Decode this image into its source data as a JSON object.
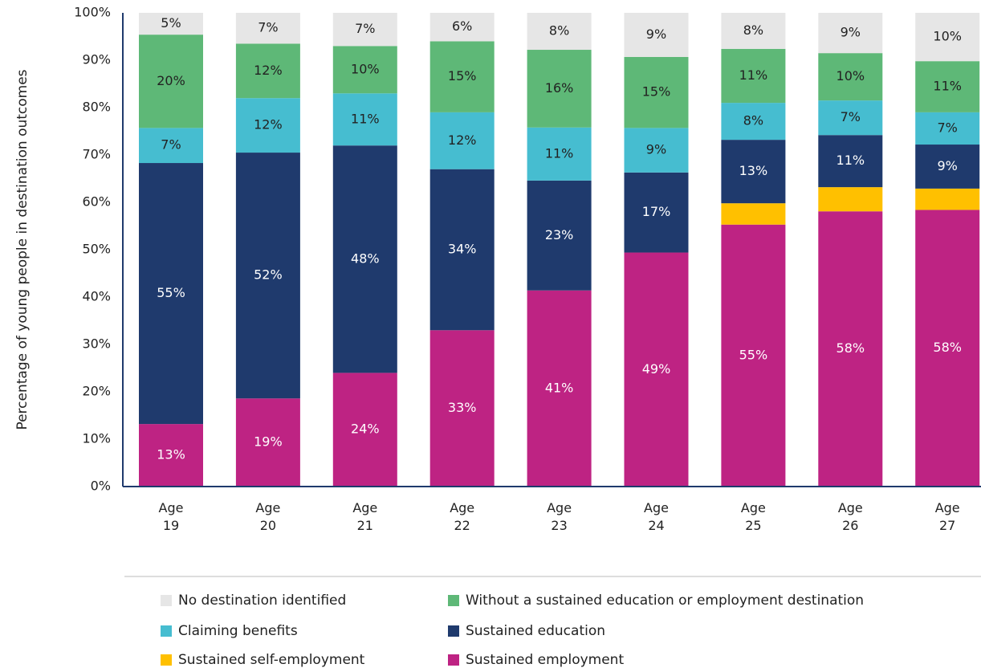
{
  "chart_data": {
    "type": "stacked_bar",
    "y_label": "Percentage of young people in destination outcomes",
    "categories": [
      "Age 19",
      "Age 20",
      "Age 21",
      "Age 22",
      "Age 23",
      "Age 24",
      "Age 25",
      "Age 26",
      "Age 27"
    ],
    "ylim": [
      0,
      100
    ],
    "yticks": [
      {
        "value": 0,
        "label": "0%"
      },
      {
        "value": 10,
        "label": "10%"
      },
      {
        "value": 20,
        "label": "20%"
      },
      {
        "value": 30,
        "label": "30%"
      },
      {
        "value": 40,
        "label": "40%"
      },
      {
        "value": 50,
        "label": "50%"
      },
      {
        "value": 60,
        "label": "60%"
      },
      {
        "value": 70,
        "label": "70%"
      },
      {
        "value": 80,
        "label": "80%"
      },
      {
        "value": 90,
        "label": "90%"
      },
      {
        "value": 100,
        "label": "100%"
      }
    ],
    "grid": false,
    "series": [
      {
        "name": "Sustained employment",
        "color": "#be2383",
        "values": [
          13.2,
          18.6,
          24,
          33,
          41.4,
          49.4,
          55.3,
          58.1,
          58.4
        ],
        "value_labels": [
          "13%",
          "19%",
          "24%",
          "33%",
          "41%",
          "49%",
          "55%",
          "58%",
          "58%"
        ]
      },
      {
        "name": "Sustained self-employment",
        "color": "#ffc000",
        "values": [
          0,
          0,
          0,
          0,
          0,
          0,
          4.5,
          5.1,
          4.5
        ]
      },
      {
        "name": "Sustained education",
        "color": "#1f3a6d",
        "values": [
          55.1,
          51.9,
          48,
          34,
          23.2,
          16.9,
          13.4,
          11,
          9.3
        ],
        "value_labels": [
          "55%",
          "52%",
          "48%",
          "34%",
          "23%",
          "17%",
          "13%",
          "11%",
          "9%"
        ]
      },
      {
        "name": "Claiming benefits",
        "color": "#46bdd0",
        "values": [
          7.4,
          11.5,
          11,
          12,
          11.2,
          9.4,
          7.8,
          7.3,
          6.8
        ],
        "value_labels": [
          "7%",
          "12%",
          "11%",
          "12%",
          "11%",
          "9%",
          "8%",
          "7%",
          "7%"
        ]
      },
      {
        "name": "Without a sustained education or employment destination",
        "color": "#5eb877",
        "values": [
          19.7,
          11.5,
          10,
          15,
          16.4,
          15,
          11.4,
          10,
          10.8
        ],
        "value_labels": [
          "20%",
          "12%",
          "10%",
          "15%",
          "16%",
          "15%",
          "11%",
          "10%",
          "11%"
        ]
      },
      {
        "name": "No destination identified",
        "color": "#e6e6e6",
        "values": [
          4.6,
          6.5,
          7,
          6,
          7.8,
          9.3,
          7.6,
          8.5,
          10.2
        ],
        "value_labels": [
          "5%",
          "7%",
          "7%",
          "6%",
          "8%",
          "9%",
          "8%",
          "9%",
          "10%"
        ]
      }
    ]
  }
}
